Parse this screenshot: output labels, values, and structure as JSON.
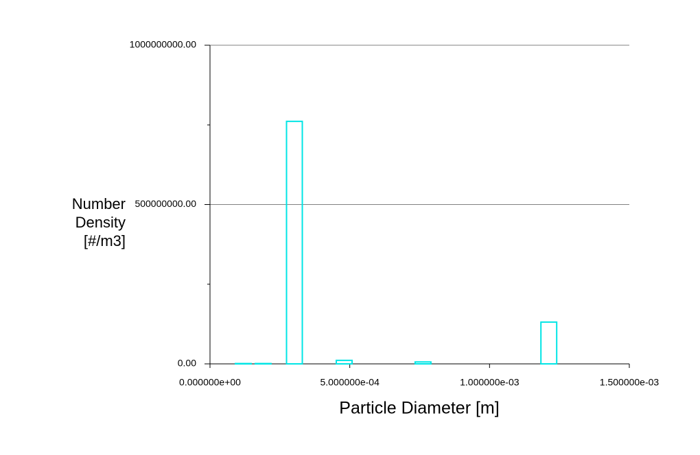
{
  "chart_data": {
    "type": "bar",
    "xlabel": "Particle Diameter [m]",
    "ylabel": "Number Density [#/m3]",
    "x": [
      0.000119,
      0.00019,
      0.000302,
      0.00048,
      0.000762,
      0.001212
    ],
    "values": [
      1000000,
      1000000,
      761000000,
      11000000,
      6000000,
      131000000
    ],
    "color": "#00e5e5",
    "xlim": [
      0,
      0.0015
    ],
    "xticks": [
      {
        "value": 0,
        "label": "0.000000e+00"
      },
      {
        "value": 0.0005,
        "label": "5.000000e-04"
      },
      {
        "value": 0.001,
        "label": "1.000000e-03"
      },
      {
        "value": 0.0015,
        "label": "1.500000e-03"
      }
    ],
    "ylim": [
      0,
      1000000000
    ],
    "yticks": [
      {
        "value": 0,
        "label": "0.00"
      },
      {
        "value": 500000000,
        "label": "500000000.00"
      },
      {
        "value": 1000000000,
        "label": "1000000000.00"
      }
    ],
    "yminorticks": [
      250000000,
      750000000
    ],
    "grid": true
  }
}
